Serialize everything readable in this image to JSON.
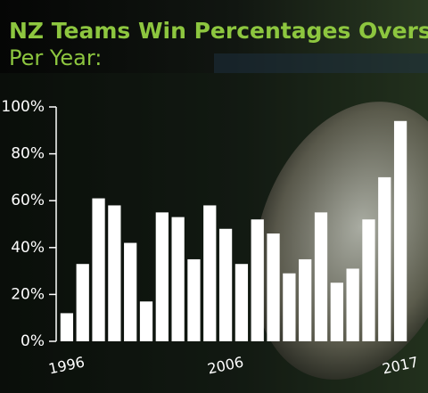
{
  "chart_data": {
    "type": "bar",
    "title": "NZ Teams Win Percentages Overseas",
    "subtitle": "Per Year:",
    "categories": [
      "1996",
      null,
      null,
      null,
      null,
      null,
      null,
      null,
      null,
      null,
      "2006",
      null,
      null,
      null,
      null,
      null,
      null,
      null,
      null,
      null,
      null,
      "2017"
    ],
    "values": [
      12,
      33,
      61,
      58,
      42,
      17,
      55,
      53,
      35,
      58,
      48,
      33,
      52,
      46,
      29,
      35,
      55,
      25,
      31,
      52,
      70,
      94
    ],
    "color": "#ffffff",
    "ylim": [
      0,
      100
    ],
    "yticks": [
      {
        "value": 0,
        "label": "0%"
      },
      {
        "value": 20,
        "label": "20%"
      },
      {
        "value": 40,
        "label": "40%"
      },
      {
        "value": 60,
        "label": "60%"
      },
      {
        "value": 80,
        "label": "80%"
      },
      {
        "value": 100,
        "label": "100%"
      }
    ]
  }
}
